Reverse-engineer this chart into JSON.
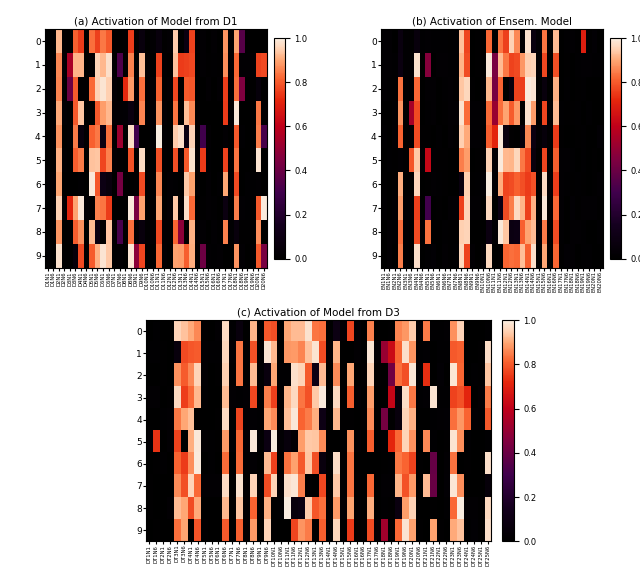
{
  "n_rows": 10,
  "colormap_colors": [
    "#000000",
    "#1a0020",
    "#3d0040",
    "#6b006b",
    "#8b0030",
    "#cc0000",
    "#ff4400",
    "#ff8855",
    "#ffccaa",
    "#fff0e0"
  ],
  "vmin": 0.0,
  "vmax": 1.0,
  "title_a": "(a) Activation of Model from D1",
  "title_b": "(b) Activation of Ensem. Model",
  "title_c": "(c) Activation of Model from D3",
  "colorbar_ticks": [
    0.0,
    0.2,
    0.4,
    0.6,
    0.8,
    1.0
  ],
  "seed_a": 10,
  "seed_b": 20,
  "seed_c": 30,
  "n_cols_a": 40,
  "n_cols_b": 40,
  "n_cols_c": 50,
  "fig_width": 6.4,
  "fig_height": 5.82,
  "sparsity_bright_a": 0.38,
  "sparsity_bright_b": 0.38,
  "sparsity_bright_c": 0.4
}
